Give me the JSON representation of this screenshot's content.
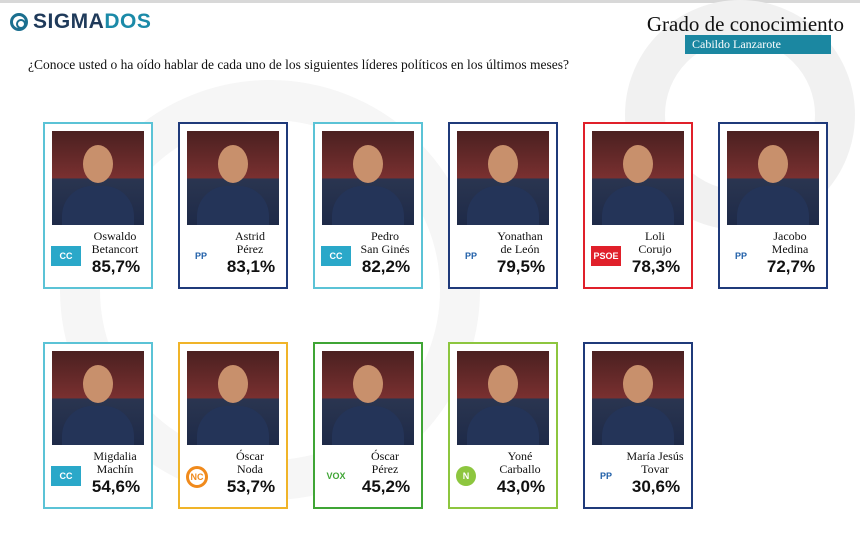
{
  "header": {
    "brand_a": "SIGMA",
    "brand_b": "DOS",
    "title": "Grado de conocimiento",
    "subtitle": "Cabildo Lanzarote",
    "question": "¿Conoce usted o ha oído hablar de cada uno de los siguientes líderes políticos en los últimos meses?"
  },
  "leaders": [
    {
      "line1": "Oswaldo",
      "line2": "Betancort",
      "pct": "85,7%",
      "party": "CC",
      "color": "#5bc3d6"
    },
    {
      "line1": "Astrid",
      "line2": "Pérez",
      "pct": "83,1%",
      "party": "PP",
      "color": "#1f3a7a"
    },
    {
      "line1": "Pedro",
      "line2": "San Ginés",
      "pct": "82,2%",
      "party": "CC",
      "color": "#5bc3d6"
    },
    {
      "line1": "Yonathan",
      "line2": "de León",
      "pct": "79,5%",
      "party": "PP",
      "color": "#1f3a7a"
    },
    {
      "line1": "Loli",
      "line2": "Corujo",
      "pct": "78,3%",
      "party": "PSOE",
      "color": "#e0202a"
    },
    {
      "line1": "Jacobo",
      "line2": "Medina",
      "pct": "72,7%",
      "party": "PP",
      "color": "#1f3a7a"
    },
    {
      "line1": "Migdalia",
      "line2": "Machín",
      "pct": "54,6%",
      "party": "CC",
      "color": "#5bc3d6"
    },
    {
      "line1": "Óscar",
      "line2": "Noda",
      "pct": "53,7%",
      "party": "NC",
      "color": "#f0b429"
    },
    {
      "line1": "Óscar",
      "line2": "Pérez",
      "pct": "45,2%",
      "party": "VOX",
      "color": "#3fa535"
    },
    {
      "line1": "Yoné",
      "line2": "Carballo",
      "pct": "43,0%",
      "party": "N",
      "color": "#8dc63f"
    },
    {
      "line1": "María Jesús",
      "line2": "Tovar",
      "pct": "30,6%",
      "party": "PP",
      "color": "#1f3a7a"
    }
  ]
}
